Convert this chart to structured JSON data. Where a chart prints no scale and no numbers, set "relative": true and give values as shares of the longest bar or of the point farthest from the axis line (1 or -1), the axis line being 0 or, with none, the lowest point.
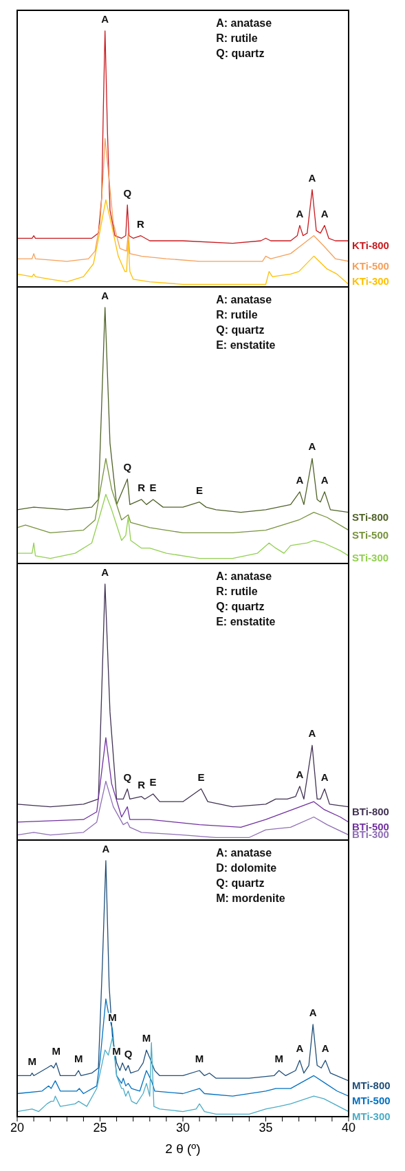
{
  "chart_data": [
    {
      "type": "line",
      "relative": true,
      "xlim": [
        20,
        40
      ],
      "tick_labels": false,
      "series": [
        {
          "name": "KTi-800",
          "color": "#c8191e",
          "x": [
            20,
            20.9,
            21,
            21.1,
            23.5,
            24.5,
            24.9,
            25.1,
            25.2,
            25.3,
            25.45,
            25.6,
            25.9,
            26.3,
            26.55,
            26.65,
            26.75,
            27,
            27.45,
            28,
            30,
            33,
            34.7,
            35,
            35.3,
            36.5,
            36.9,
            37.05,
            37.25,
            37.5,
            37.8,
            38.05,
            38.3,
            38.55,
            38.8,
            39.2,
            40
          ],
          "values": [
            0.19,
            0.19,
            0.2,
            0.19,
            0.19,
            0.19,
            0.21,
            0.35,
            0.7,
            1,
            0.6,
            0.3,
            0.2,
            0.19,
            0.2,
            0.32,
            0.2,
            0.19,
            0.2,
            0.18,
            0.18,
            0.17,
            0.18,
            0.19,
            0.18,
            0.18,
            0.2,
            0.24,
            0.2,
            0.21,
            0.38,
            0.22,
            0.21,
            0.24,
            0.19,
            0.18,
            0.18
          ]
        },
        {
          "name": "KTi-500",
          "color": "#f5a05a",
          "x": [
            20,
            20.9,
            21,
            21.1,
            23,
            24.3,
            24.7,
            25,
            25.2,
            25.3,
            25.5,
            25.8,
            26.2,
            26.6,
            26.7,
            26.8,
            27.5,
            29,
            31,
            33,
            34.8,
            35,
            35.3,
            36.5,
            37.3,
            37.9,
            38.5,
            39.2,
            40
          ],
          "values": [
            0.11,
            0.11,
            0.13,
            0.11,
            0.1,
            0.11,
            0.14,
            0.25,
            0.45,
            0.58,
            0.45,
            0.25,
            0.15,
            0.14,
            0.21,
            0.13,
            0.12,
            0.11,
            0.1,
            0.1,
            0.1,
            0.12,
            0.11,
            0.13,
            0.17,
            0.2,
            0.16,
            0.11,
            0.1
          ]
        },
        {
          "name": "KTi-300",
          "color": "#ffc000",
          "x": [
            20,
            20.9,
            21,
            21.1,
            22,
            23,
            24,
            24.6,
            25,
            25.35,
            25.7,
            26.1,
            26.5,
            26.6,
            26.7,
            26.8,
            27,
            28,
            30,
            33,
            35,
            35.2,
            35.4,
            36.5,
            37,
            37.9,
            38.7,
            39.3,
            40
          ],
          "values": [
            0.05,
            0.04,
            0.05,
            0.04,
            0.03,
            0.02,
            0.04,
            0.09,
            0.22,
            0.34,
            0.24,
            0.12,
            0.06,
            0.06,
            0.18,
            0.06,
            0.03,
            0.02,
            0.01,
            0.01,
            0.01,
            0.06,
            0.04,
            0.05,
            0.06,
            0.12,
            0.07,
            0.05,
            0.01
          ]
        }
      ],
      "annotations": [
        "A: anatase",
        "R: rutile",
        "Q: quartz",
        {
          "text": "A",
          "x": 25.3,
          "y": 1
        },
        {
          "text": "Q",
          "x": 26.65,
          "y": 0.32
        },
        {
          "text": "R",
          "x": 27.45,
          "y": 0.2
        },
        {
          "text": "A",
          "x": 37.05,
          "y": 0.24
        },
        {
          "text": "A",
          "x": 37.8,
          "y": 0.38
        },
        {
          "text": "A",
          "x": 38.55,
          "y": 0.24
        }
      ]
    },
    {
      "type": "line",
      "relative": true,
      "xlim": [
        20,
        40
      ],
      "tick_labels": false,
      "series": [
        {
          "name": "STi-800",
          "color": "#4f6228",
          "x": [
            20,
            21,
            23,
            24.5,
            24.9,
            25.3,
            25.6,
            26,
            26.65,
            26.8,
            27.5,
            27.8,
            28.2,
            28.8,
            30,
            31,
            31.4,
            32,
            33.5,
            35,
            36.5,
            37.05,
            37.3,
            37.8,
            38.1,
            38.3,
            38.55,
            38.9,
            40
          ],
          "values": [
            0.21,
            0.22,
            0.21,
            0.22,
            0.25,
            1,
            0.47,
            0.23,
            0.33,
            0.23,
            0.25,
            0.23,
            0.25,
            0.22,
            0.22,
            0.24,
            0.22,
            0.21,
            0.2,
            0.21,
            0.23,
            0.28,
            0.23,
            0.41,
            0.25,
            0.24,
            0.28,
            0.21,
            0.2
          ]
        },
        {
          "name": "STi-500",
          "color": "#77933c",
          "x": [
            20,
            20.5,
            22,
            24,
            24.7,
            25.35,
            25.7,
            26.3,
            26.7,
            26.85,
            28,
            30,
            33,
            35,
            37,
            37.9,
            38.7,
            40
          ],
          "values": [
            0.14,
            0.15,
            0.12,
            0.13,
            0.17,
            0.41,
            0.29,
            0.17,
            0.19,
            0.16,
            0.14,
            0.12,
            0.12,
            0.13,
            0.17,
            0.2,
            0.18,
            0.13
          ]
        },
        {
          "name": "STi-300",
          "color": "#92d050",
          "x": [
            20,
            20.9,
            21,
            21.1,
            22,
            23.5,
            24.5,
            25,
            25.35,
            25.7,
            26.3,
            26.55,
            26.7,
            26.85,
            27.5,
            28,
            29,
            31,
            33,
            34.5,
            35.2,
            35.6,
            36.1,
            36.5,
            37.5,
            37.9,
            38.5,
            39.5,
            40
          ],
          "values": [
            0.04,
            0.04,
            0.08,
            0.03,
            0.02,
            0.04,
            0.08,
            0.19,
            0.27,
            0.21,
            0.09,
            0.11,
            0.18,
            0.09,
            0.06,
            0.06,
            0.04,
            0.02,
            0.02,
            0.04,
            0.08,
            0.06,
            0.04,
            0.07,
            0.08,
            0.09,
            0.08,
            0.05,
            0.03
          ]
        }
      ],
      "annotations": [
        "A: anatase",
        "R: rutile",
        "Q: quartz",
        "E: enstatite",
        {
          "text": "A",
          "x": 25.3,
          "y": 1
        },
        {
          "text": "Q",
          "x": 26.65,
          "y": 0.33
        },
        {
          "text": "R",
          "x": 27.5,
          "y": 0.25
        },
        {
          "text": "E",
          "x": 28.2,
          "y": 0.25
        },
        {
          "text": "E",
          "x": 31,
          "y": 0.24
        },
        {
          "text": "A",
          "x": 37.05,
          "y": 0.28
        },
        {
          "text": "A",
          "x": 37.8,
          "y": 0.41
        },
        {
          "text": "A",
          "x": 38.55,
          "y": 0.28
        }
      ]
    },
    {
      "type": "line",
      "relative": true,
      "xlim": [
        20,
        40
      ],
      "tick_labels": false,
      "series": [
        {
          "name": "BTi-800",
          "color": "#403152",
          "x": [
            20,
            22,
            24,
            24.9,
            25.3,
            25.6,
            26,
            26.4,
            26.65,
            26.8,
            27.5,
            27.7,
            28.2,
            28.6,
            30,
            31.1,
            31.5,
            33,
            35,
            35.6,
            36.3,
            36.8,
            37.05,
            37.3,
            37.8,
            38.1,
            38.3,
            38.55,
            38.85,
            40
          ],
          "values": [
            0.14,
            0.13,
            0.14,
            0.16,
            1,
            0.5,
            0.16,
            0.16,
            0.2,
            0.16,
            0.17,
            0.16,
            0.18,
            0.15,
            0.15,
            0.2,
            0.15,
            0.13,
            0.14,
            0.16,
            0.16,
            0.17,
            0.21,
            0.16,
            0.37,
            0.16,
            0.16,
            0.2,
            0.14,
            0.13
          ]
        },
        {
          "name": "BTi-500",
          "color": "#7030a0",
          "x": [
            20,
            24,
            24.8,
            25.35,
            25.7,
            26.3,
            26.65,
            26.8,
            28,
            31,
            33.5,
            35,
            37.9,
            38.5,
            39.5,
            40
          ],
          "values": [
            0.07,
            0.08,
            0.11,
            0.4,
            0.22,
            0.09,
            0.13,
            0.08,
            0.08,
            0.06,
            0.05,
            0.08,
            0.15,
            0.12,
            0.09,
            0.07
          ]
        },
        {
          "name": "BTi-300",
          "color": "#8f6fb5",
          "x": [
            20,
            21,
            22,
            24,
            24.8,
            25.35,
            25.8,
            26.4,
            26.65,
            26.8,
            27.5,
            30,
            32,
            34,
            35,
            36.5,
            37.9,
            38.7,
            40
          ],
          "values": [
            0.02,
            0.03,
            0.02,
            0.03,
            0.07,
            0.23,
            0.13,
            0.06,
            0.07,
            0.05,
            0.03,
            0.02,
            0.01,
            0.01,
            0.04,
            0.05,
            0.09,
            0.06,
            0.02
          ]
        }
      ],
      "annotations": [
        "A: anatase",
        "R: rutile",
        "Q: quartz",
        "E: enstatite",
        {
          "text": "A",
          "x": 25.3,
          "y": 1
        },
        {
          "text": "Q",
          "x": 26.65,
          "y": 0.2
        },
        {
          "text": "R",
          "x": 27.5,
          "y": 0.17
        },
        {
          "text": "E",
          "x": 28.2,
          "y": 0.18
        },
        {
          "text": "E",
          "x": 31.1,
          "y": 0.2
        },
        {
          "text": "A",
          "x": 37.05,
          "y": 0.21
        },
        {
          "text": "A",
          "x": 37.8,
          "y": 0.37
        },
        {
          "text": "A",
          "x": 38.55,
          "y": 0.2
        }
      ]
    },
    {
      "type": "line",
      "relative": true,
      "xlim": [
        20,
        40
      ],
      "tick_labels": "x",
      "xlabel": "2 θ (º)",
      "xticks": [
        20,
        {
          "value": 21,
          "label": null
        },
        {
          "value": 22,
          "label": null
        },
        {
          "value": 23,
          "label": null
        },
        {
          "value": 24,
          "label": null
        },
        25,
        {
          "value": 26,
          "label": null
        },
        {
          "value": 27,
          "label": null
        },
        {
          "value": 28,
          "label": null
        },
        {
          "value": 29,
          "label": null
        },
        30,
        {
          "value": 31,
          "label": null
        },
        {
          "value": 32,
          "label": null
        },
        {
          "value": 33,
          "label": null
        },
        {
          "value": 34,
          "label": null
        },
        35,
        {
          "value": 36,
          "label": null
        },
        {
          "value": 37,
          "label": null
        },
        {
          "value": 38,
          "label": null
        },
        {
          "value": 39,
          "label": null
        },
        40
      ],
      "series": [
        {
          "name": "MTi-800",
          "color": "#1f4e79",
          "x": [
            20,
            20.8,
            20.9,
            21,
            21.8,
            22.05,
            22.2,
            22.35,
            22.6,
            23.5,
            23.7,
            23.85,
            24.5,
            24.9,
            25.15,
            25.35,
            25.55,
            25.75,
            26,
            26.2,
            26.35,
            26.55,
            26.7,
            26.85,
            27.3,
            27.6,
            27.8,
            28,
            28.3,
            28.6,
            30,
            31,
            31.3,
            31.6,
            32,
            34,
            35.5,
            35.8,
            36.2,
            36.8,
            37.05,
            37.3,
            37.6,
            37.85,
            38.1,
            38.35,
            38.6,
            38.9,
            40
          ],
          "values": [
            0.16,
            0.16,
            0.17,
            0.16,
            0.19,
            0.2,
            0.19,
            0.21,
            0.16,
            0.16,
            0.18,
            0.16,
            0.17,
            0.19,
            0.61,
            1,
            0.51,
            0.31,
            0.21,
            0.18,
            0.21,
            0.18,
            0.2,
            0.17,
            0.18,
            0.21,
            0.26,
            0.23,
            0.18,
            0.16,
            0.16,
            0.18,
            0.16,
            0.17,
            0.15,
            0.15,
            0.16,
            0.18,
            0.16,
            0.18,
            0.22,
            0.17,
            0.2,
            0.36,
            0.2,
            0.19,
            0.22,
            0.17,
            0.14
          ]
        },
        {
          "name": "MTi-500",
          "color": "#0070c0",
          "x": [
            20,
            21.5,
            21.9,
            22.05,
            22.3,
            22.6,
            23.6,
            23.75,
            24,
            24.8,
            25,
            25.35,
            25.55,
            25.75,
            26,
            26.3,
            26.4,
            26.55,
            26.7,
            26.9,
            27.4,
            27.8,
            28.1,
            28.3,
            30,
            31,
            31.3,
            33,
            35,
            35.6,
            36.5,
            37.9,
            38.6,
            39.3,
            40
          ],
          "values": [
            0.09,
            0.1,
            0.12,
            0.11,
            0.14,
            0.1,
            0.1,
            0.11,
            0.09,
            0.12,
            0.22,
            0.46,
            0.39,
            0.34,
            0.16,
            0.13,
            0.15,
            0.12,
            0.13,
            0.11,
            0.1,
            0.18,
            0.14,
            0.1,
            0.09,
            0.11,
            0.09,
            0.08,
            0.1,
            0.11,
            0.11,
            0.16,
            0.13,
            0.1,
            0.08
          ]
        },
        {
          "name": "MTi-300",
          "color": "#4bacc6",
          "x": [
            20,
            20.9,
            21.3,
            21.8,
            22.05,
            22.2,
            22.3,
            22.6,
            23.5,
            23.7,
            24.2,
            24.8,
            25.3,
            25.5,
            25.75,
            26,
            26.3,
            26.4,
            26.55,
            26.7,
            26.9,
            27.2,
            27.6,
            27.8,
            28,
            28.1,
            28.25,
            28.6,
            30,
            30.8,
            31,
            31.3,
            32,
            34,
            35,
            35.8,
            36.5,
            37.9,
            38.5,
            40
          ],
          "values": [
            0.02,
            0.03,
            0.02,
            0.05,
            0.06,
            0.06,
            0.08,
            0.04,
            0.05,
            0.06,
            0.04,
            0.11,
            0.26,
            0.24,
            0.31,
            0.16,
            0.11,
            0.11,
            0.08,
            0.1,
            0.06,
            0.05,
            0.09,
            0.13,
            0.08,
            0.29,
            0.04,
            0.03,
            0.02,
            0.03,
            0.05,
            0.02,
            0.01,
            0.01,
            0.03,
            0.04,
            0.05,
            0.08,
            0.07,
            0.02
          ]
        }
      ],
      "annotations": [
        "A: anatase",
        "D: dolomite",
        "Q: quartz",
        "M: mordenite",
        {
          "text": "A",
          "x": 25.35,
          "y": 1
        },
        {
          "text": "M",
          "x": 20.9,
          "y": 0.17
        },
        {
          "text": "M",
          "x": 22.35,
          "y": 0.21
        },
        {
          "text": "M",
          "x": 23.7,
          "y": 0.18
        },
        {
          "text": "M",
          "x": 25.75,
          "y": 0.34
        },
        {
          "text": "M",
          "x": 26,
          "y": 0.21
        },
        {
          "text": "Q",
          "x": 26.7,
          "y": 0.2
        },
        {
          "text": "M",
          "x": 27.8,
          "y": 0.26
        },
        {
          "text": "M",
          "x": 31,
          "y": 0.18
        },
        {
          "text": "M",
          "x": 35.8,
          "y": 0.18
        },
        {
          "text": "A",
          "x": 37.05,
          "y": 0.22
        },
        {
          "text": "A",
          "x": 37.85,
          "y": 0.36
        },
        {
          "text": "A",
          "x": 38.6,
          "y": 0.22
        }
      ]
    }
  ]
}
